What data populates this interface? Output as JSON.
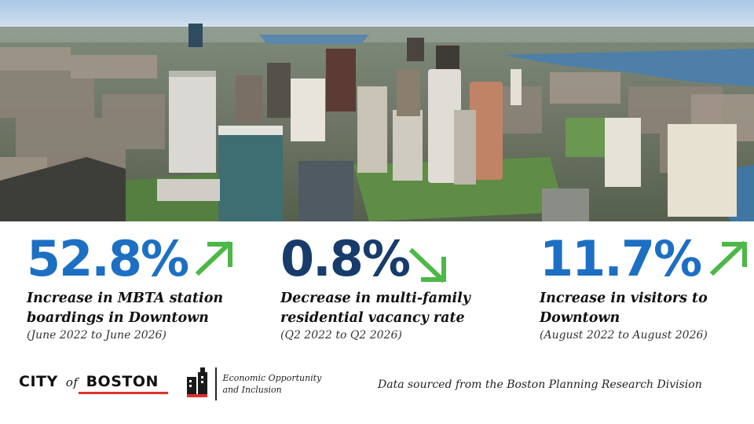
{
  "colors": {
    "blue": "#1d6fc3",
    "navy": "#173c6b",
    "green_arrow": "#4cb848",
    "boston_red": "#e0312b"
  },
  "photo": {
    "description_icon": "city-skyline-photo"
  },
  "stats": [
    {
      "value": "52.8%",
      "trend": "up",
      "description_line1": "Increase in MBTA station",
      "description_line2": "boardings in Downtown",
      "period": "(June 2022 to June 2026)"
    },
    {
      "value": "0.8%",
      "trend": "down",
      "description_line1": "Decrease in multi-family",
      "description_line2": "residential vacancy rate",
      "period": "(Q2 2022 to Q2 2026)"
    },
    {
      "value": "11.7%",
      "trend": "up",
      "description_line1": "Increase in visitors to",
      "description_line2": "Downtown",
      "period": "(August 2022 to August 2026)"
    }
  ],
  "footer": {
    "city_logo": {
      "part1": "CITY",
      "part2": "of",
      "part3": "BOSTON"
    },
    "eoi_logo": {
      "line1": "Economic Opportunity",
      "line2": "and Inclusion"
    },
    "source": "Data sourced from the Boston Planning Research Division"
  }
}
